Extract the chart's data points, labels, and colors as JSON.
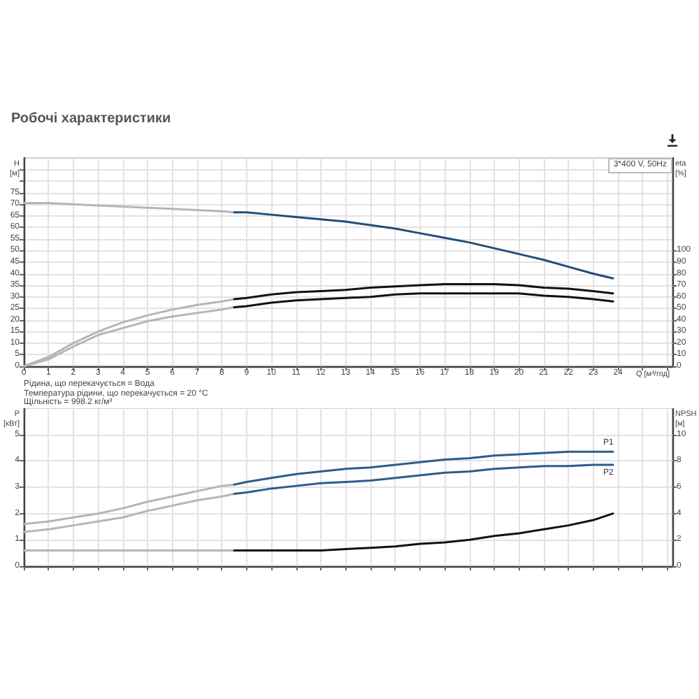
{
  "chart_data": [
    {
      "type": "line",
      "title": "Робочі характеристики",
      "xlabel": "Q [м³/год]",
      "ylabel": "H [м]",
      "y2label": "eta [%]",
      "annotations": [
        "3*400 V, 50Hz",
        "Рідина, що перекачується = Вода",
        "Температура рідини, що перекачується = 20 °C",
        "Щільність = 998.2 кг/м³"
      ],
      "xlim": [
        0,
        26.2
      ],
      "xticks": [
        0,
        1,
        2,
        3,
        4,
        5,
        6,
        7,
        8,
        9,
        10,
        11,
        12,
        13,
        14,
        15,
        16,
        17,
        18,
        19,
        20,
        21,
        22,
        23,
        24,
        {
          "value": 25,
          "label": null
        },
        {
          "value": 26,
          "label": null
        }
      ],
      "ylim": [
        0,
        90
      ],
      "yticks": [
        0,
        5,
        10,
        15,
        20,
        25,
        30,
        35,
        40,
        45,
        50,
        55,
        60,
        65,
        70,
        75,
        {
          "value": 80,
          "label": null
        },
        {
          "value": 85,
          "label": null
        }
      ],
      "y2lim": [
        0,
        180
      ],
      "y2ticks": [
        0,
        10,
        20,
        30,
        40,
        50,
        60,
        70,
        80,
        90,
        100
      ],
      "grid": true,
      "marker": "none",
      "line_style": "solid",
      "series": [
        {
          "x": [
            0,
            1,
            2,
            3,
            4,
            5,
            6,
            7,
            8,
            8.5
          ],
          "color": "#b5b5b5",
          "values": [
            70.5,
            70.5,
            70,
            69.5,
            69,
            68.5,
            68,
            67.5,
            67,
            66.5
          ]
        },
        {
          "x": [
            8.5,
            9,
            10,
            11,
            12,
            13,
            14,
            15,
            16,
            17,
            18,
            19,
            20,
            21,
            22,
            23,
            23.8
          ],
          "color": "#1f4e79",
          "values": [
            66.5,
            66.5,
            65.5,
            64.5,
            63.5,
            62.5,
            61,
            59.5,
            57.5,
            55.5,
            53.5,
            51,
            48.5,
            46,
            43,
            40,
            38
          ]
        },
        {
          "x": [
            0,
            1,
            2,
            3,
            4,
            5,
            6,
            7,
            8,
            8.5
          ],
          "axis": "y2",
          "color": "#b5b5b5",
          "values": [
            0,
            8,
            20,
            30,
            38,
            44,
            49,
            53,
            56,
            58
          ]
        },
        {
          "x": [
            8.5,
            9,
            10,
            11,
            12,
            13,
            14,
            15,
            16,
            17,
            18,
            19,
            20,
            21,
            22,
            23,
            23.8
          ],
          "axis": "y2",
          "color": "#111111",
          "values": [
            58,
            59,
            62,
            64,
            65,
            66,
            68,
            69,
            70,
            71,
            71,
            71,
            70,
            68,
            67,
            65,
            63
          ]
        },
        {
          "x": [
            0,
            1,
            2,
            3,
            4,
            5,
            6,
            7,
            8,
            8.5
          ],
          "axis": "y2",
          "color": "#b5b5b5",
          "values": [
            0,
            6,
            17,
            27,
            33,
            39,
            43,
            46,
            49,
            51
          ]
        },
        {
          "x": [
            8.5,
            9,
            10,
            11,
            12,
            13,
            14,
            15,
            16,
            17,
            18,
            19,
            20,
            21,
            22,
            23,
            23.8
          ],
          "axis": "y2",
          "color": "#111111",
          "values": [
            51,
            52,
            55,
            57,
            58,
            59,
            60,
            62,
            63,
            63,
            63,
            63,
            63,
            61,
            60,
            58,
            56
          ]
        }
      ]
    },
    {
      "type": "line",
      "ylabel": "P [кВт]",
      "y2label": "NPSH [м]",
      "xlim": [
        0,
        26.2
      ],
      "xticks": [
        0,
        1,
        2,
        3,
        4,
        5,
        6,
        7,
        8,
        9,
        10,
        11,
        12,
        13,
        14,
        15,
        16,
        17,
        18,
        19,
        20,
        21,
        22,
        23,
        24,
        25,
        26
      ],
      "ylim": [
        0,
        6
      ],
      "yticks": [
        0,
        1,
        2,
        3,
        4,
        5
      ],
      "y2lim": [
        0,
        12
      ],
      "y2ticks": [
        0,
        2,
        4,
        6,
        8,
        10
      ],
      "tick_labels": "y",
      "grid": true,
      "marker": "none",
      "line_style": "solid",
      "series": [
        {
          "x": [
            0,
            1,
            2,
            3,
            4,
            5,
            6,
            7,
            8,
            8.5
          ],
          "color": "#b5b5b5",
          "values": [
            1.6,
            1.7,
            1.85,
            2,
            2.2,
            2.45,
            2.65,
            2.85,
            3.05,
            3.1
          ]
        },
        {
          "name": "P1",
          "x": [
            8.5,
            9,
            10,
            11,
            12,
            13,
            14,
            15,
            16,
            17,
            18,
            19,
            20,
            21,
            22,
            23,
            23.8
          ],
          "color": "#2b5d8c",
          "values": [
            3.1,
            3.2,
            3.35,
            3.5,
            3.6,
            3.7,
            3.75,
            3.85,
            3.95,
            4.05,
            4.1,
            4.2,
            4.25,
            4.3,
            4.35,
            4.35,
            4.35
          ]
        },
        {
          "x": [
            0,
            1,
            2,
            3,
            4,
            5,
            6,
            7,
            8,
            8.5
          ],
          "color": "#b5b5b5",
          "values": [
            1.3,
            1.4,
            1.55,
            1.7,
            1.85,
            2.1,
            2.3,
            2.5,
            2.65,
            2.75
          ]
        },
        {
          "name": "P2",
          "x": [
            8.5,
            9,
            10,
            11,
            12,
            13,
            14,
            15,
            16,
            17,
            18,
            19,
            20,
            21,
            22,
            23,
            23.8
          ],
          "color": "#2b5d8c",
          "values": [
            2.75,
            2.8,
            2.95,
            3.05,
            3.15,
            3.2,
            3.25,
            3.35,
            3.45,
            3.55,
            3.6,
            3.7,
            3.75,
            3.8,
            3.8,
            3.85,
            3.85
          ]
        },
        {
          "x": [
            0,
            8.5
          ],
          "axis": "y2",
          "color": "#b5b5b5",
          "values": [
            1.2,
            1.2
          ]
        },
        {
          "x": [
            8.5,
            10,
            12,
            13,
            14,
            15,
            16,
            17,
            18,
            19,
            20,
            21,
            22,
            23,
            23.8
          ],
          "axis": "y2",
          "color": "#111111",
          "values": [
            1.2,
            1.2,
            1.2,
            1.3,
            1.4,
            1.5,
            1.7,
            1.8,
            2,
            2.3,
            2.5,
            2.8,
            3.1,
            3.5,
            4
          ]
        }
      ]
    }
  ]
}
